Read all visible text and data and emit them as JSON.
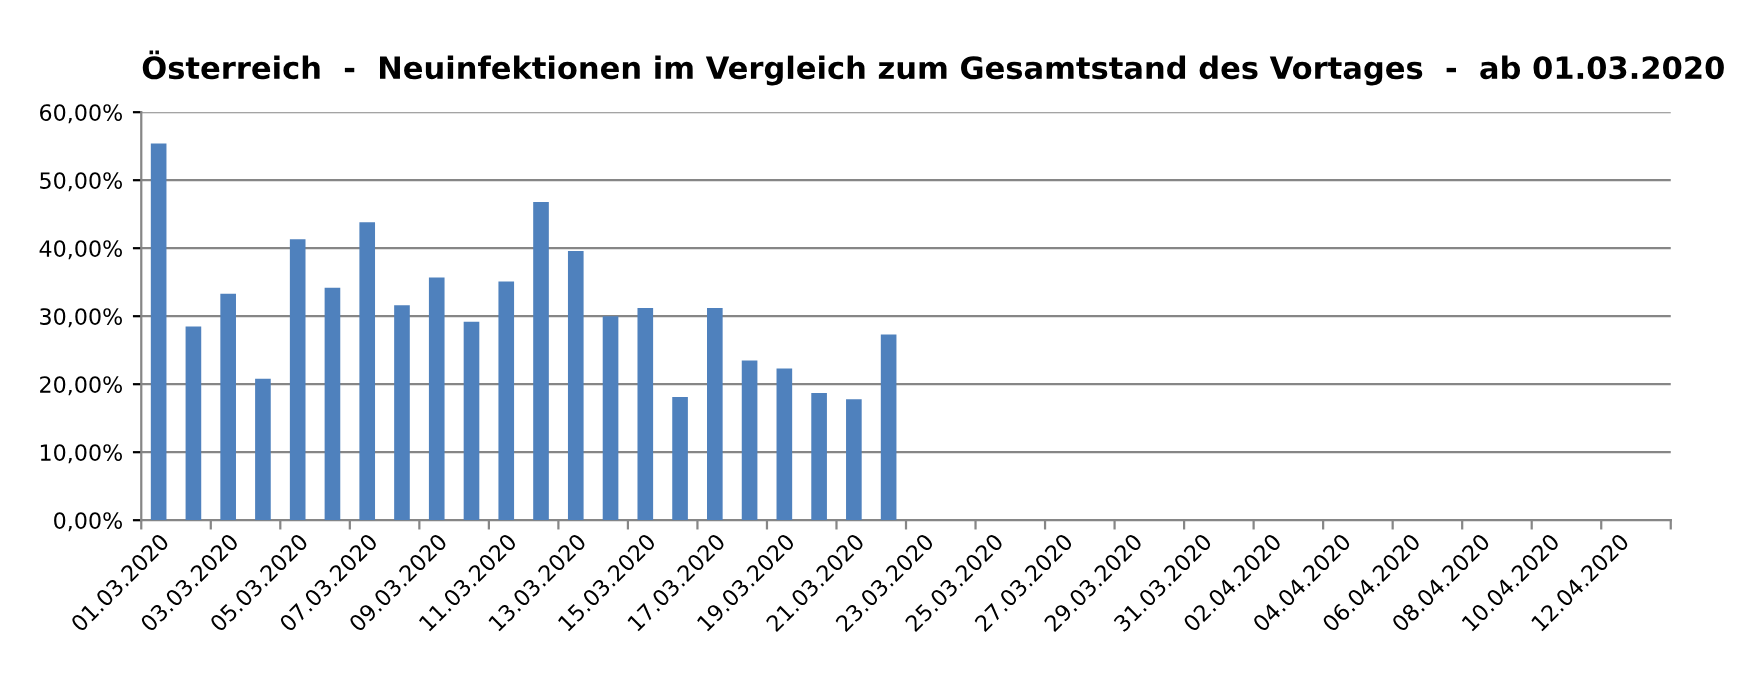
{
  "chart_data": {
    "type": "bar",
    "title": "Österreich  -  Neuinfektionen im Vergleich zum Gesamtstand des Vortages  -  ab 01.03.2020",
    "categories": [
      "01.03.2020",
      null,
      "03.03.2020",
      null,
      "05.03.2020",
      null,
      "07.03.2020",
      null,
      "09.03.2020",
      null,
      "11.03.2020",
      null,
      "13.03.2020",
      null,
      "15.03.2020",
      null,
      "17.03.2020",
      null,
      "19.03.2020",
      null,
      "21.03.2020",
      null,
      "23.03.2020",
      null,
      "25.03.2020",
      null,
      "27.03.2020",
      null,
      "29.03.2020",
      null,
      "31.03.2020",
      null,
      "02.04.2020",
      null,
      "04.04.2020",
      null,
      "06.04.2020",
      null,
      "08.04.2020",
      null,
      "10.04.2020",
      null,
      "12.04.2020",
      null
    ],
    "values": [
      55.4,
      28.5,
      33.3,
      20.8,
      41.3,
      34.2,
      43.8,
      31.6,
      35.7,
      29.2,
      35.1,
      46.8,
      39.6,
      30.0,
      31.2,
      18.1,
      31.2,
      23.5,
      22.3,
      18.7,
      17.8,
      27.3,
      null,
      null,
      null,
      null,
      null,
      null,
      null,
      null,
      null,
      null,
      null,
      null,
      null,
      null,
      null,
      null,
      null,
      null,
      null,
      null,
      null,
      null
    ],
    "color": "#4f81bd",
    "ylim": [
      0,
      60
    ],
    "yticks": [
      {
        "value": 0,
        "label": "0,00%"
      },
      {
        "value": 10,
        "label": "10,00%"
      },
      {
        "value": 20,
        "label": "20,00%"
      },
      {
        "value": 30,
        "label": "30,00%"
      },
      {
        "value": 40,
        "label": "40,00%"
      },
      {
        "value": 50,
        "label": "50,00%"
      },
      {
        "value": 60,
        "label": "60,00%"
      }
    ],
    "grid": "y"
  }
}
